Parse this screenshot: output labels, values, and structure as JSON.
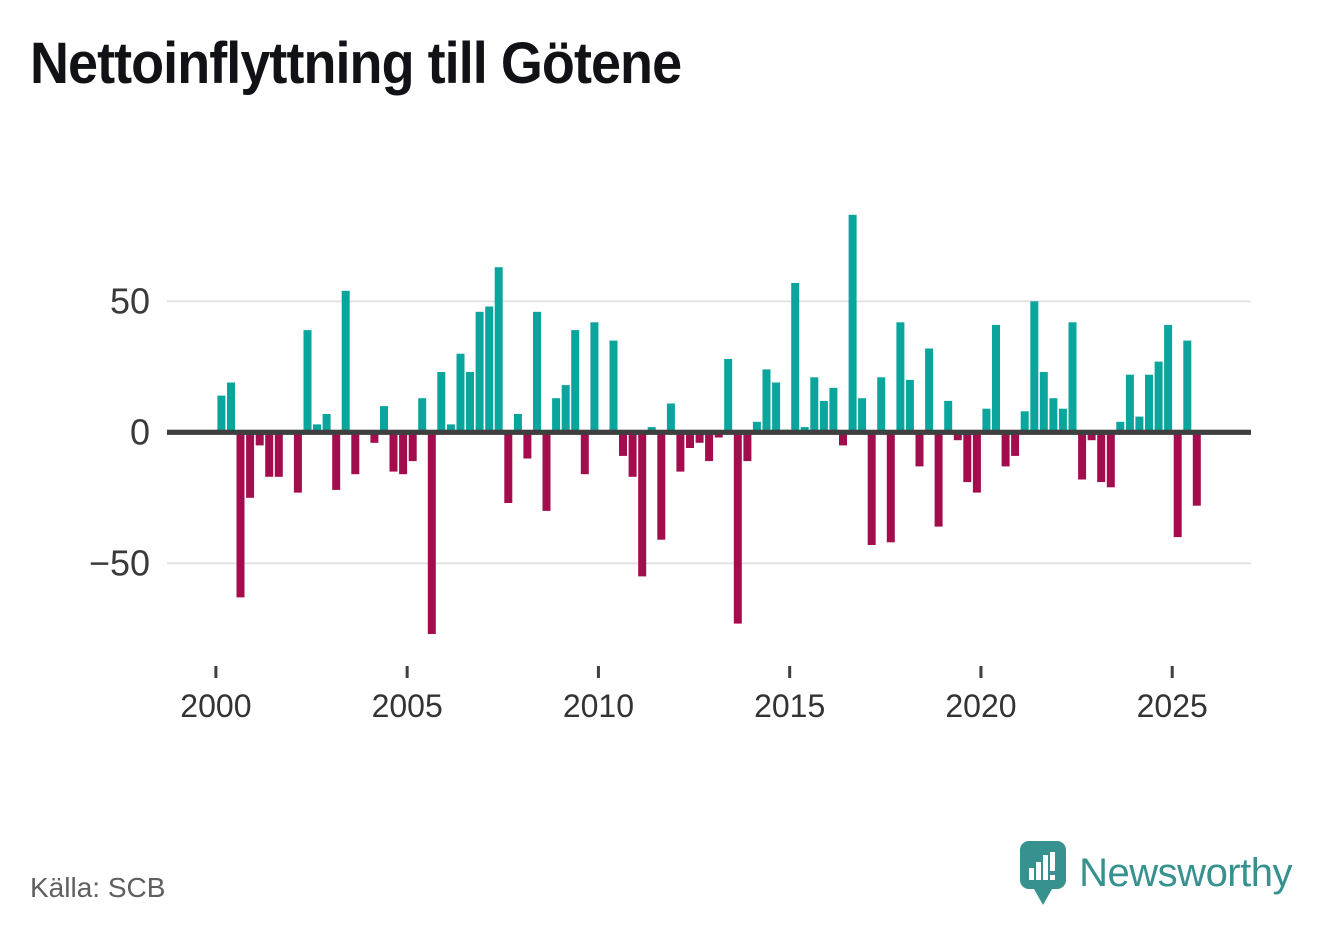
{
  "title": "Nettoinflyttning till Götene",
  "source": "Källa: SCB",
  "brand": {
    "name": "Newsworthy",
    "logo_icon": "bar-chart-pin-icon"
  },
  "colors": {
    "positive": "#0aa69e",
    "negative": "#a30d4e",
    "brand": "#36918f",
    "grid": "#e3e3e3",
    "axis_line": "#3f3f3f",
    "axis_text": "#3a3a3a",
    "title_text": "#101215",
    "source_text": "#5f5f5f"
  },
  "y_axis": {
    "ticks": [
      {
        "label": "50",
        "value": 50
      },
      {
        "label": "0",
        "value": 0
      },
      {
        "label": "−50",
        "value": -50
      }
    ]
  },
  "x_axis": {
    "tick_labels": [
      "2000",
      "2005",
      "2010",
      "2015",
      "2020",
      "2025"
    ],
    "tick_years": [
      2000,
      2005,
      2010,
      2015,
      2020,
      2025
    ]
  },
  "chart_data": {
    "type": "bar",
    "title": "Nettoinflyttning till Götene",
    "frequency": "quarterly",
    "xlabel": "",
    "ylabel": "",
    "ylim": [
      -85,
      90
    ],
    "grid": "horizontal, at 50 / 0 / -50 only",
    "legend": "none (color = sign: teal positive, crimson negative)",
    "x_range": [
      "2000 Q1",
      "2025 Q3"
    ],
    "series_by_year": [
      {
        "year": 2000,
        "quarters": [
          14,
          19,
          -63,
          -25
        ]
      },
      {
        "year": 2001,
        "quarters": [
          -5,
          -17,
          -17,
          0
        ]
      },
      {
        "year": 2002,
        "quarters": [
          -23,
          39,
          3,
          7
        ]
      },
      {
        "year": 2003,
        "quarters": [
          -22,
          54,
          -16,
          0
        ]
      },
      {
        "year": 2004,
        "quarters": [
          -4,
          10,
          -15,
          -16
        ]
      },
      {
        "year": 2005,
        "quarters": [
          -11,
          13,
          -77,
          23
        ]
      },
      {
        "year": 2006,
        "quarters": [
          3,
          30,
          23,
          46
        ]
      },
      {
        "year": 2007,
        "quarters": [
          48,
          63,
          -27,
          7
        ]
      },
      {
        "year": 2008,
        "quarters": [
          -10,
          46,
          -30,
          13
        ]
      },
      {
        "year": 2009,
        "quarters": [
          18,
          39,
          -16,
          42
        ]
      },
      {
        "year": 2010,
        "quarters": [
          0,
          35,
          -9,
          -17
        ]
      },
      {
        "year": 2011,
        "quarters": [
          -55,
          2,
          -41,
          11
        ]
      },
      {
        "year": 2012,
        "quarters": [
          -15,
          -6,
          -4,
          -11
        ]
      },
      {
        "year": 2013,
        "quarters": [
          -2,
          28,
          -73,
          -11
        ]
      },
      {
        "year": 2014,
        "quarters": [
          4,
          24,
          19,
          1
        ]
      },
      {
        "year": 2015,
        "quarters": [
          57,
          2,
          21,
          12
        ]
      },
      {
        "year": 2016,
        "quarters": [
          17,
          -5,
          83,
          13
        ]
      },
      {
        "year": 2017,
        "quarters": [
          -43,
          21,
          -42,
          42
        ]
      },
      {
        "year": 2018,
        "quarters": [
          20,
          -13,
          32,
          -36
        ]
      },
      {
        "year": 2019,
        "quarters": [
          12,
          -3,
          -19,
          -23
        ]
      },
      {
        "year": 2020,
        "quarters": [
          9,
          41,
          -13,
          -9
        ]
      },
      {
        "year": 2021,
        "quarters": [
          8,
          50,
          23,
          13
        ]
      },
      {
        "year": 2022,
        "quarters": [
          9,
          42,
          -18,
          -3
        ]
      },
      {
        "year": 2023,
        "quarters": [
          -19,
          -21,
          4,
          22
        ]
      },
      {
        "year": 2024,
        "quarters": [
          6,
          22,
          27,
          41
        ]
      },
      {
        "year": 2025,
        "quarters": [
          -40,
          35,
          -28
        ]
      }
    ]
  }
}
